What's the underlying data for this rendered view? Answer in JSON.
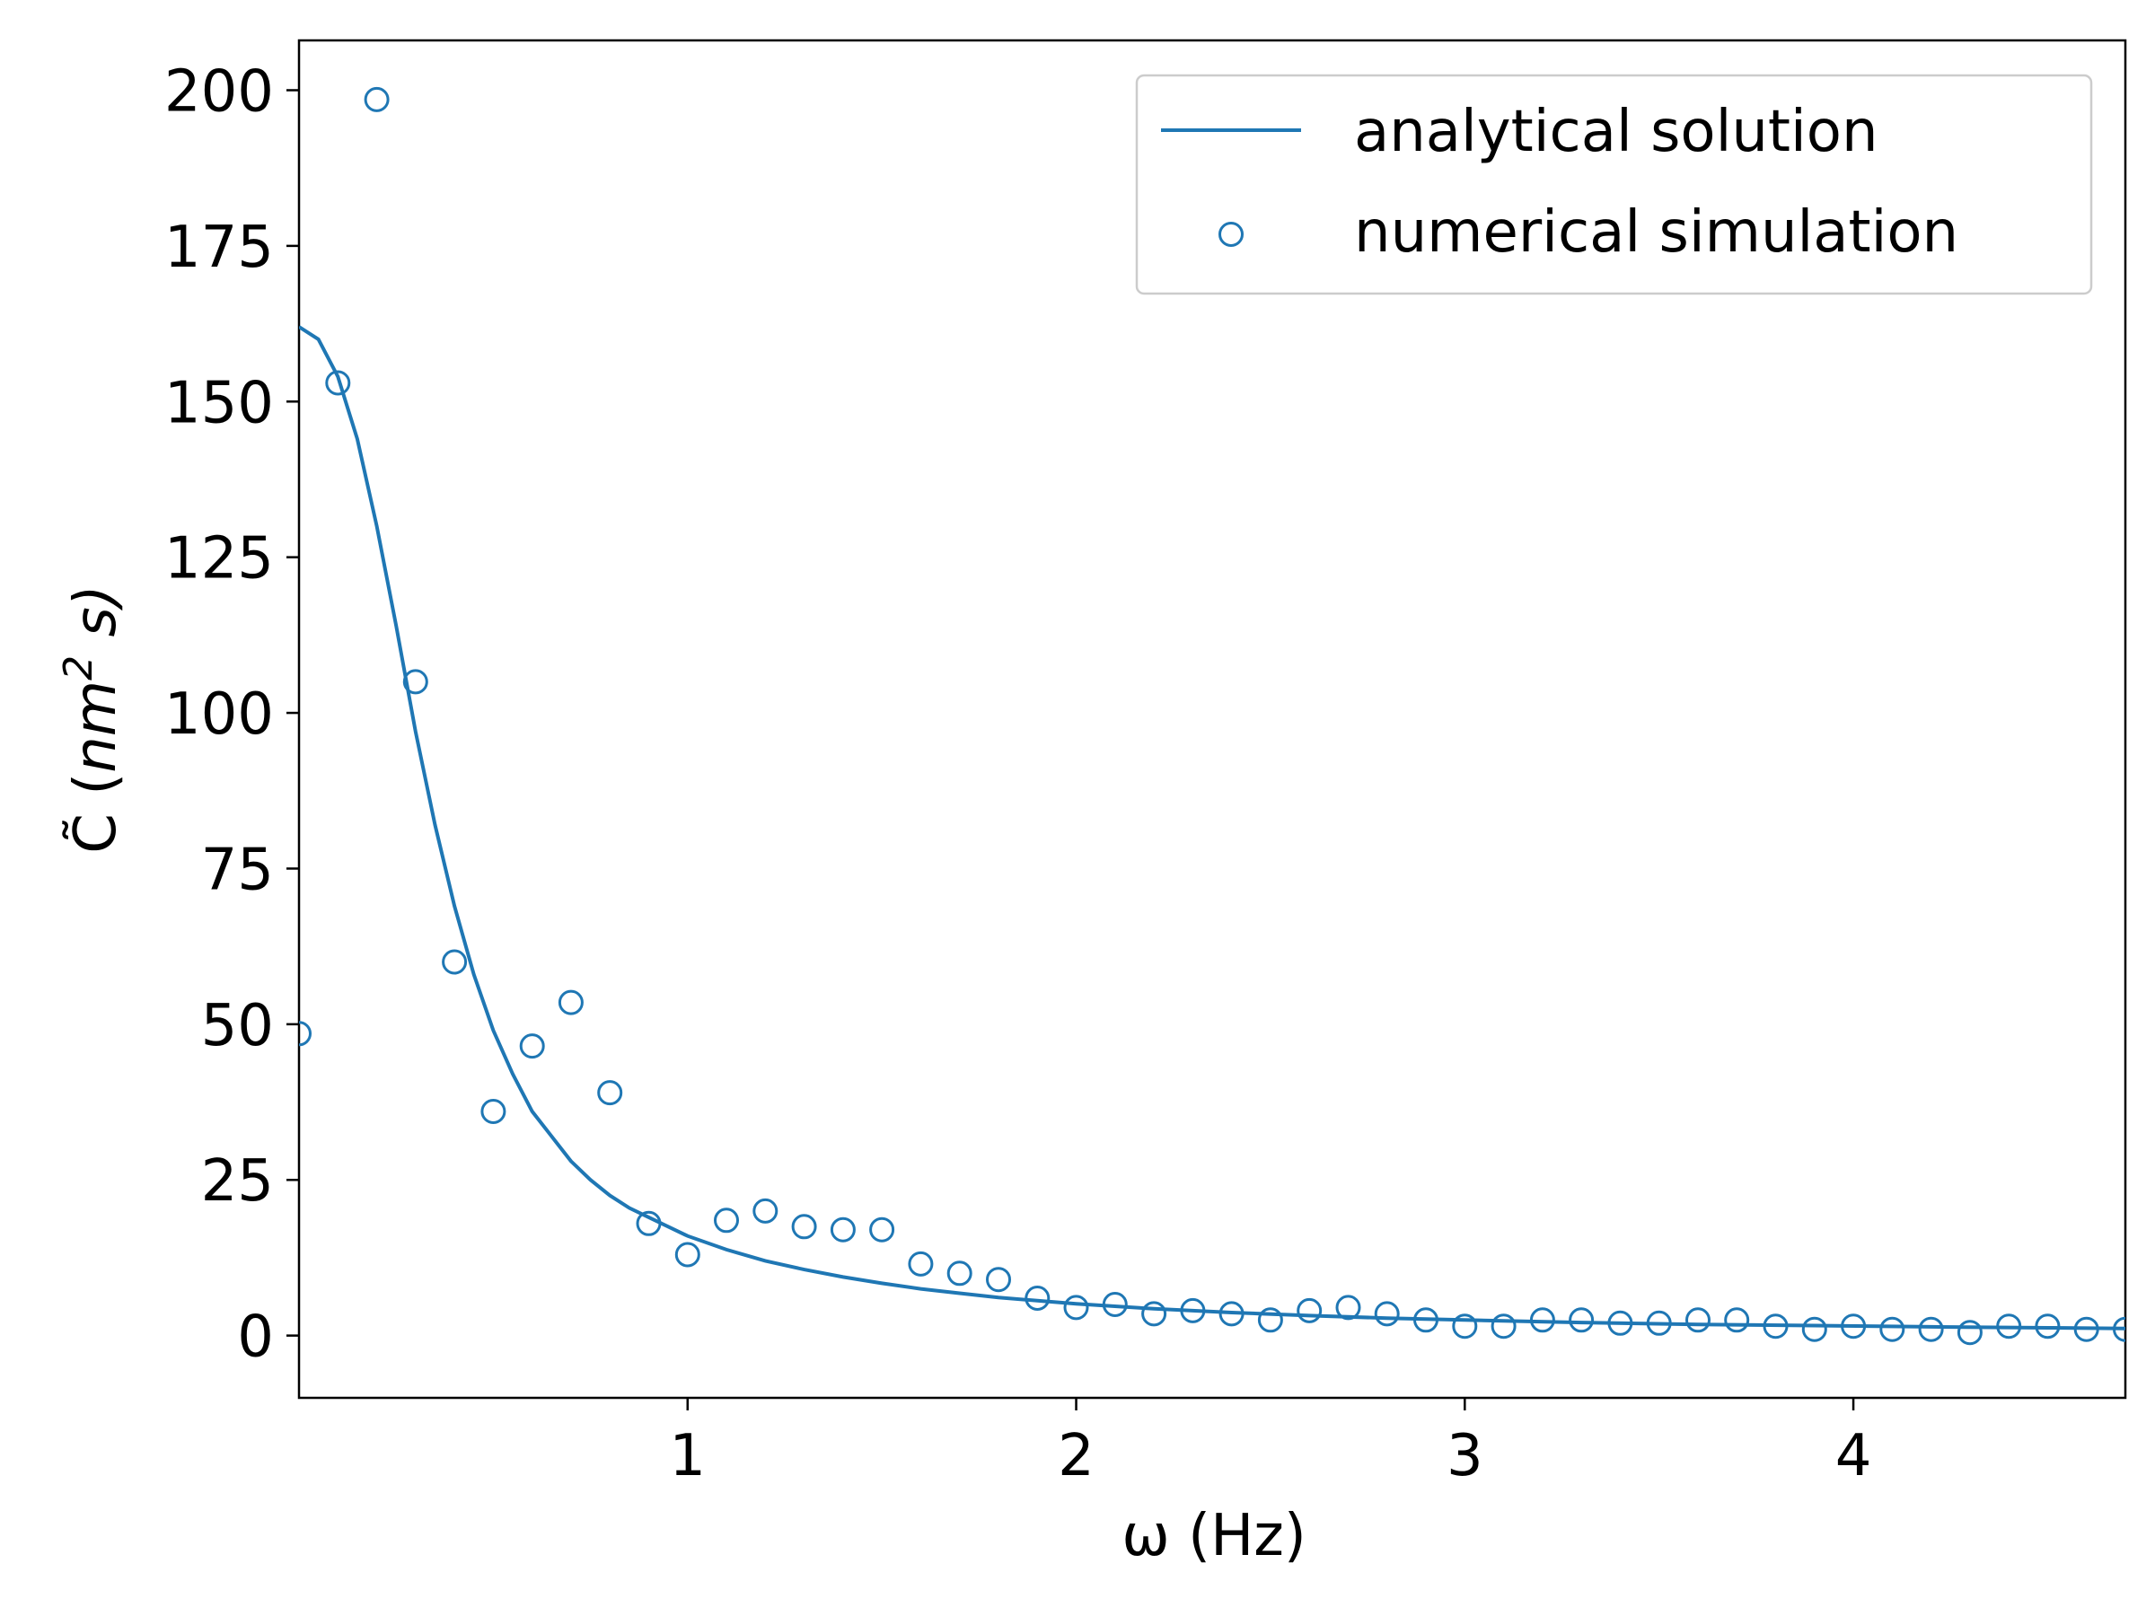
{
  "chart_data": {
    "type": "line",
    "title": "",
    "xlabel": "ω (Hz)",
    "ylabel": {
      "base": "C̃ (",
      "unit": "nm",
      "exponent": "2",
      "suffix": " s)"
    },
    "xlim": [
      0.0,
      4.7
    ],
    "ylim": [
      -10,
      208
    ],
    "x_ticks": [
      1,
      2,
      3,
      4
    ],
    "y_ticks": [
      0,
      25,
      50,
      75,
      100,
      125,
      150,
      175,
      200
    ],
    "grid": false,
    "legend_position": "top-right",
    "color": "#1f77b4",
    "series": [
      {
        "name": "analytical solution",
        "style": "line",
        "x": [
          0.0,
          0.05,
          0.1,
          0.15,
          0.2,
          0.25,
          0.3,
          0.35,
          0.4,
          0.45,
          0.5,
          0.55,
          0.6,
          0.65,
          0.7,
          0.75,
          0.8,
          0.85,
          0.9,
          0.95,
          1.0,
          1.1,
          1.2,
          1.3,
          1.4,
          1.5,
          1.6,
          1.7,
          1.8,
          1.9,
          2.0,
          2.2,
          2.4,
          2.6,
          2.8,
          3.0,
          3.3,
          3.6,
          3.9,
          4.2,
          4.5,
          4.7
        ],
        "y": [
          162,
          160,
          154,
          144,
          130,
          114,
          97,
          82,
          69,
          58,
          49,
          42,
          36,
          32,
          28,
          25,
          22.5,
          20.5,
          19,
          17.5,
          16,
          13.8,
          12,
          10.6,
          9.4,
          8.4,
          7.5,
          6.8,
          6.1,
          5.6,
          5.1,
          4.3,
          3.7,
          3.2,
          2.8,
          2.5,
          2.1,
          1.8,
          1.6,
          1.4,
          1.25,
          1.15
        ]
      },
      {
        "name": "numerical simulation",
        "style": "markers",
        "x": [
          0.0,
          0.1,
          0.2,
          0.3,
          0.4,
          0.5,
          0.6,
          0.7,
          0.8,
          0.9,
          1.0,
          1.1,
          1.2,
          1.3,
          1.4,
          1.5,
          1.6,
          1.7,
          1.8,
          1.9,
          2.0,
          2.1,
          2.2,
          2.3,
          2.4,
          2.5,
          2.6,
          2.7,
          2.8,
          2.9,
          3.0,
          3.1,
          3.2,
          3.3,
          3.4,
          3.5,
          3.6,
          3.7,
          3.8,
          3.9,
          4.0,
          4.1,
          4.2,
          4.3,
          4.4,
          4.5,
          4.6,
          4.7
        ],
        "y": [
          48.5,
          153,
          198.5,
          105,
          60,
          36,
          46.5,
          53.5,
          39,
          18,
          13,
          18.5,
          20,
          17.5,
          17,
          17,
          11.5,
          10,
          9,
          6,
          4.5,
          5,
          3.5,
          4,
          3.5,
          2.5,
          4,
          4.5,
          3.5,
          2.5,
          1.5,
          1.5,
          2.5,
          2.5,
          2,
          2,
          2.5,
          2.5,
          1.5,
          1,
          1.5,
          1,
          1,
          0.5,
          1.5,
          1.5,
          1,
          1
        ]
      }
    ]
  }
}
